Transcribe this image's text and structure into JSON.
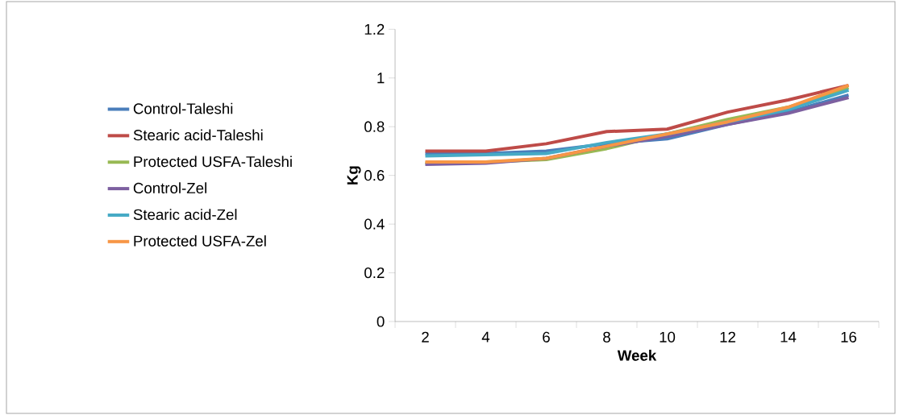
{
  "chart_data": {
    "type": "line",
    "xlabel": "Week",
    "ylabel": "Kg",
    "categories": [
      "2",
      "4",
      "6",
      "8",
      "10",
      "12",
      "14",
      "16"
    ],
    "series": [
      {
        "name": "Control-Taleshi",
        "color": "#4a7ebb",
        "values": [
          0.69,
          0.69,
          0.7,
          0.73,
          0.75,
          0.81,
          0.86,
          0.93
        ]
      },
      {
        "name": "Stearic acid-Taleshi",
        "color": "#be4b48",
        "values": [
          0.7,
          0.7,
          0.73,
          0.78,
          0.79,
          0.86,
          0.91,
          0.97
        ]
      },
      {
        "name": "Protected USFA-Taleshi",
        "color": "#98b954",
        "values": [
          0.65,
          0.655,
          0.665,
          0.71,
          0.77,
          0.83,
          0.88,
          0.96
        ]
      },
      {
        "name": "Control-Zel",
        "color": "#7d60a0",
        "values": [
          0.645,
          0.65,
          0.67,
          0.72,
          0.76,
          0.81,
          0.855,
          0.92
        ]
      },
      {
        "name": "Stearic acid-Zel",
        "color": "#46aac5",
        "values": [
          0.68,
          0.685,
          0.69,
          0.735,
          0.77,
          0.82,
          0.87,
          0.95
        ]
      },
      {
        "name": "Protected USFA-Zel",
        "color": "#f79646",
        "values": [
          0.655,
          0.655,
          0.67,
          0.72,
          0.77,
          0.82,
          0.88,
          0.97
        ]
      }
    ],
    "ylim": [
      0,
      1.2
    ],
    "yticks": [
      0,
      0.2,
      0.4,
      0.6,
      0.8,
      1,
      1.2
    ],
    "grid": false,
    "legend": "left",
    "line_style": "solid"
  }
}
